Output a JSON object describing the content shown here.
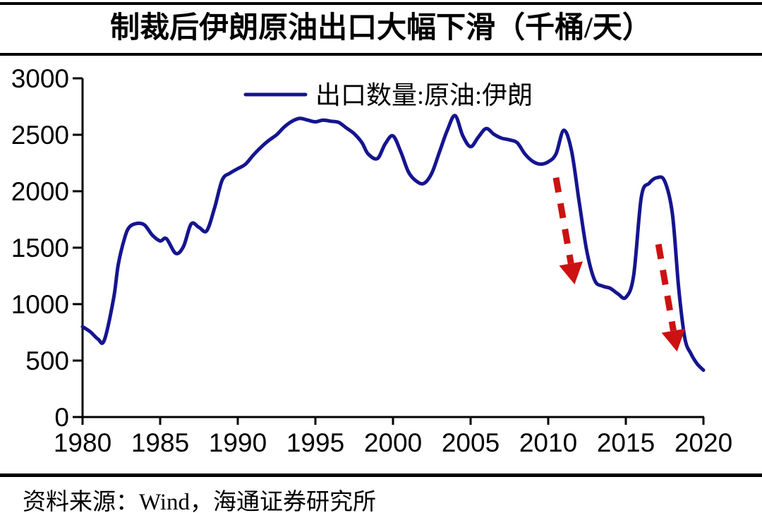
{
  "page": {
    "title": "制裁后伊朗原油出口大幅下滑（千桶/天）",
    "source": "资料来源：Wind，海通证券研究所"
  },
  "colors": {
    "line": "#15158f",
    "arrow": "#cc1111",
    "axis": "#000000",
    "text": "#000000",
    "rule": "#000000"
  },
  "chart_data": {
    "type": "line",
    "title": "制裁后伊朗原油出口大幅下滑（千桶/天）",
    "unit": "千桶/天",
    "xlabel": "",
    "ylabel": "",
    "xlim": [
      1980,
      2020
    ],
    "ylim": [
      0,
      3000
    ],
    "grid": false,
    "legend_position": "top-center",
    "legend": [
      {
        "label": "出口数量:原油:伊朗",
        "color": "#15158f"
      }
    ],
    "x_ticks": [
      1980,
      1985,
      1990,
      1995,
      2000,
      2005,
      2010,
      2015,
      2020
    ],
    "y_ticks": [
      0,
      500,
      1000,
      1500,
      2000,
      2500,
      3000
    ],
    "series": [
      {
        "name": "出口数量:原油:伊朗",
        "x": [
          1980,
          1980.5,
          1981,
          1981.4,
          1982,
          1982.3,
          1982.7,
          1983,
          1983.5,
          1984,
          1984.5,
          1985,
          1985.4,
          1986,
          1986.5,
          1987,
          1987.5,
          1988,
          1988.5,
          1989,
          1989.5,
          1990,
          1990.5,
          1991,
          1991.5,
          1992,
          1992.5,
          1993,
          1993.5,
          1994,
          1994.5,
          1995,
          1995.5,
          1996,
          1996.5,
          1997,
          1997.5,
          1998,
          1998.4,
          1999,
          1999.5,
          2000,
          2000.5,
          2001,
          2001.5,
          2002,
          2002.5,
          2003,
          2003.5,
          2004,
          2004.5,
          2005,
          2005.5,
          2006,
          2006.5,
          2007,
          2007.5,
          2008,
          2008.5,
          2009,
          2009.5,
          2010,
          2010.5,
          2011,
          2011.5,
          2012,
          2012.5,
          2013,
          2013.5,
          2014,
          2014.5,
          2015,
          2015.5,
          2016,
          2016.5,
          2017,
          2017.5,
          2018,
          2018.4,
          2018.8,
          2019.2,
          2019.6,
          2020
        ],
        "y": [
          800,
          755,
          690,
          680,
          1050,
          1350,
          1580,
          1680,
          1715,
          1700,
          1610,
          1560,
          1580,
          1450,
          1510,
          1710,
          1680,
          1650,
          1850,
          2100,
          2160,
          2200,
          2240,
          2320,
          2390,
          2450,
          2500,
          2570,
          2620,
          2645,
          2630,
          2615,
          2630,
          2620,
          2610,
          2560,
          2510,
          2430,
          2330,
          2290,
          2420,
          2490,
          2350,
          2170,
          2090,
          2070,
          2160,
          2350,
          2540,
          2670,
          2490,
          2395,
          2480,
          2555,
          2505,
          2470,
          2455,
          2430,
          2330,
          2265,
          2240,
          2260,
          2330,
          2540,
          2360,
          1900,
          1460,
          1210,
          1160,
          1140,
          1090,
          1060,
          1250,
          1950,
          2070,
          2120,
          2090,
          1800,
          1150,
          700,
          560,
          470,
          415
        ]
      }
    ],
    "annotations": [
      {
        "type": "dashed-arrow",
        "color": "#cc1111",
        "from": {
          "x": 2010.5,
          "y": 2120
        },
        "to": {
          "x": 2011.7,
          "y": 1175
        }
      },
      {
        "type": "dashed-arrow",
        "color": "#cc1111",
        "from": {
          "x": 2017.1,
          "y": 1530
        },
        "to": {
          "x": 2018.3,
          "y": 580
        }
      }
    ],
    "source_note": "资料来源：Wind，海通证券研究所"
  }
}
